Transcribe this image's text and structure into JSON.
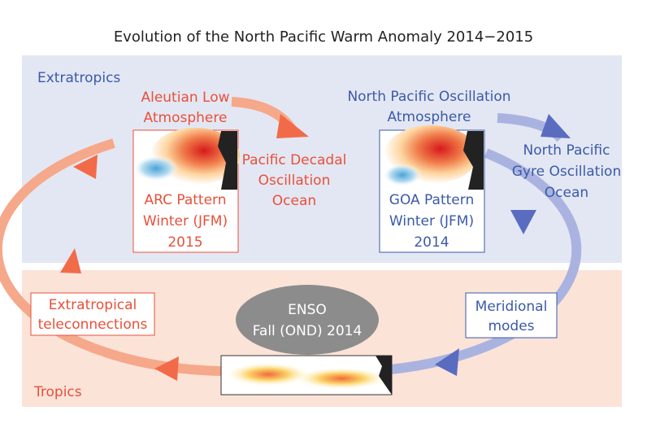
{
  "title": "Evolution of the North Pacific Warm Anomaly 2014−2015",
  "regions": {
    "extratropics": "Extratropics",
    "tropics": "Tropics"
  },
  "nodes": {
    "aleutian": [
      "Aleutian Low",
      "Atmosphere"
    ],
    "pdo": [
      "Pacific Decadal",
      "Oscillation",
      "Ocean"
    ],
    "arc": [
      "ARC Pattern",
      "Winter (JFM)",
      "2015"
    ],
    "npo": [
      "North Pacific Oscillation",
      "Atmosphere"
    ],
    "npgo": [
      "North Pacific",
      "Gyre Oscillation",
      "Ocean"
    ],
    "goa": [
      "GOA Pattern",
      "Winter (JFM)",
      "2014"
    ],
    "enso": [
      "ENSO",
      "Fall (OND) 2014"
    ],
    "meridional": [
      "Meridional",
      "modes"
    ],
    "teleconnections": [
      "Extratropical",
      "teleconnections"
    ]
  }
}
